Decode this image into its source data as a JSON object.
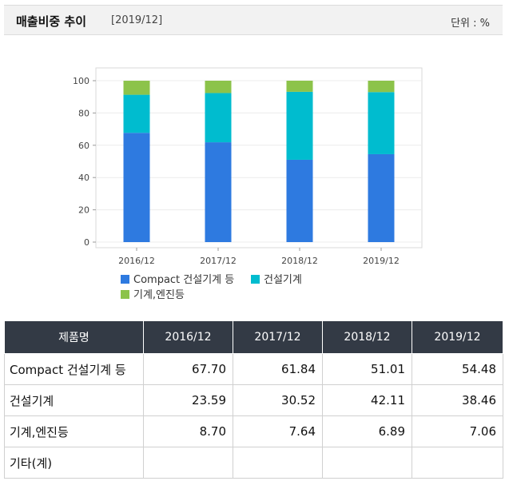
{
  "header": {
    "title": "매출비중 추이",
    "period": "[2019/12]",
    "unit": "단위 : %"
  },
  "colors": {
    "compact": "#2e7ae0",
    "construction": "#00bccf",
    "machine": "#8cc34a"
  },
  "chart_data": {
    "type": "bar",
    "stacked": true,
    "categories": [
      "2016/12",
      "2017/12",
      "2018/12",
      "2019/12"
    ],
    "series": [
      {
        "name": "Compact 건설기계 등",
        "values": [
          67.7,
          61.84,
          51.01,
          54.48
        ],
        "color": "#2e7ae0"
      },
      {
        "name": "건설기계",
        "values": [
          23.59,
          30.52,
          42.11,
          38.46
        ],
        "color": "#00bccf"
      },
      {
        "name": "기계,엔진등",
        "values": [
          8.7,
          7.64,
          6.89,
          7.06
        ],
        "color": "#8cc34a"
      }
    ],
    "yticks": [
      "0",
      "20",
      "40",
      "60",
      "80",
      "100"
    ],
    "ylim": [
      0,
      100
    ],
    "grid": true,
    "legend": "bottom"
  },
  "table": {
    "headers": [
      "제품명",
      "2016/12",
      "2017/12",
      "2018/12",
      "2019/12"
    ],
    "rows": [
      {
        "name": "Compact 건설기계 등",
        "values": [
          "67.70",
          "61.84",
          "51.01",
          "54.48"
        ]
      },
      {
        "name": "건설기계",
        "values": [
          "23.59",
          "30.52",
          "42.11",
          "38.46"
        ]
      },
      {
        "name": "기계,엔진등",
        "values": [
          "8.70",
          "7.64",
          "6.89",
          "7.06"
        ]
      },
      {
        "name": "기타(계)",
        "values": [
          "",
          "",
          "",
          ""
        ]
      }
    ]
  }
}
